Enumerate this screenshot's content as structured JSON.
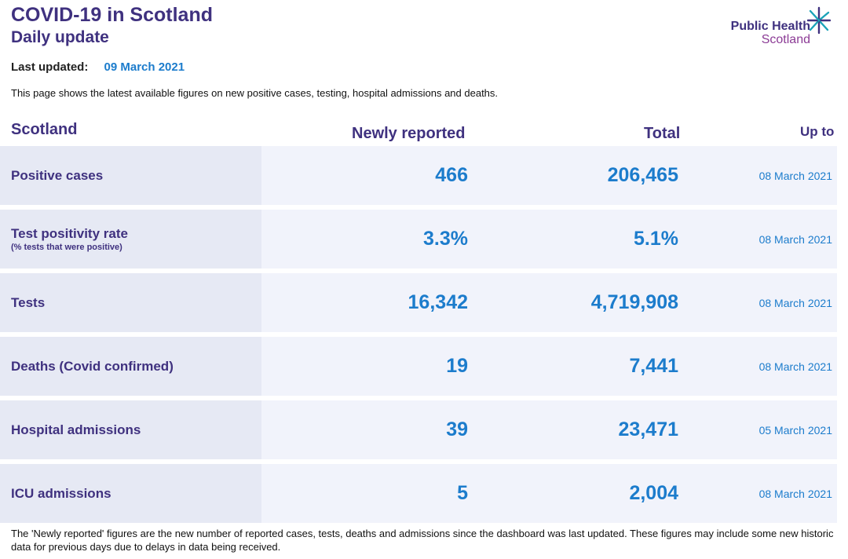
{
  "header": {
    "title": "COVID-19 in Scotland",
    "subtitle": "Daily update",
    "last_updated_label": "Last updated:",
    "last_updated_date": "09 March 2021",
    "intro": "This page shows the latest available figures on new positive cases, testing, hospital admissions and deaths."
  },
  "logo": {
    "line1": "Public Health",
    "line2": "Scotland",
    "icon": "star-burst-icon"
  },
  "table": {
    "headers": {
      "region": "Scotland",
      "newly_reported": "Newly reported",
      "total": "Total",
      "up_to": "Up to"
    },
    "rows": [
      {
        "label": "Positive cases",
        "sublabel": "",
        "new": "466",
        "total": "206,465",
        "up_to": "08 March 2021"
      },
      {
        "label": "Test positivity rate",
        "sublabel": "(% tests that were positive)",
        "new": "3.3%",
        "total": "5.1%",
        "up_to": "08 March 2021"
      },
      {
        "label": "Tests",
        "sublabel": "",
        "new": "16,342",
        "total": "4,719,908",
        "up_to": "08 March 2021"
      },
      {
        "label": "Deaths (Covid confirmed)",
        "sublabel": "",
        "new": "19",
        "total": "7,441",
        "up_to": "08 March 2021"
      },
      {
        "label": "Hospital admissions",
        "sublabel": "",
        "new": "39",
        "total": "23,471",
        "up_to": "05 March 2021"
      },
      {
        "label": "ICU admissions",
        "sublabel": "",
        "new": "5",
        "total": "2,004",
        "up_to": "08 March 2021"
      }
    ]
  },
  "footnote": "The 'Newly reported' figures are the new number of reported cases, tests, deaths and admissions since the dashboard was last updated. These figures may include some new historic data for previous days due to delays in data being received.",
  "colors": {
    "heading": "#3f317f",
    "value": "#1c7ccc",
    "row_bg": "#f1f3fb",
    "label_bg": "#e6e9f4"
  }
}
